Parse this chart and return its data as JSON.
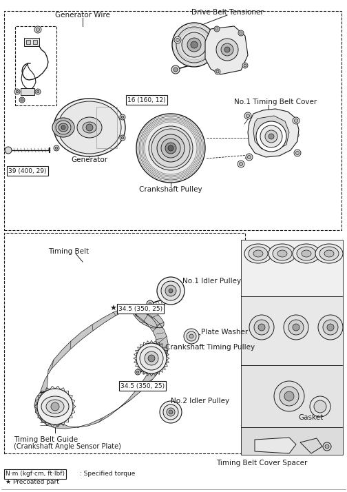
{
  "bg_color": "#ffffff",
  "line_color": "#1a1a1a",
  "fig_width": 5.04,
  "fig_height": 7.14,
  "dpi": 100,
  "labels": {
    "generator_wire": "Generator Wire",
    "drive_belt_tensioner": "Drive Belt Tensioner",
    "no1_timing_belt_cover": "No.1 Timing Belt Cover",
    "torque1": "16 (160, 12)",
    "torque_main": "39 (400, 29)",
    "generator": "Generator",
    "crankshaft_pulley": "Crankshaft Pulley",
    "timing_belt": "Timing Belt",
    "no1_idler_pulley": "No.1 Idler Pulley",
    "torque2": "34.5 (350, 25)",
    "plate_washer": "Plate Washer",
    "crankshaft_timing_pulley": "Crankshaft Timing Pulley",
    "torque3": "34.5 (350, 25)",
    "no2_idler_pulley": "No.2 Idler Pulley",
    "gasket": "Gasket",
    "timing_belt_guide": "Timing Belt Guide",
    "timing_belt_guide2": "(Crankshaft Angle Sensor Plate)",
    "timing_belt_cover_spacer": "Timing Belt Cover Spacer",
    "legend1_box": "N·m (kgf·cm, ft·lbf)",
    "legend1_rest": " : Specified torque",
    "legend2": "★ Precoated part"
  }
}
